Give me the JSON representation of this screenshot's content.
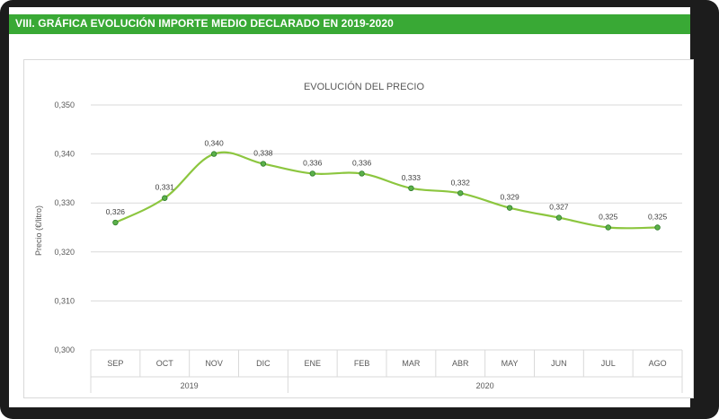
{
  "header": {
    "title": "VIII. GRÁFICA EVOLUCIÓN IMPORTE MEDIO DECLARADO EN 2019-2020"
  },
  "colors": {
    "accent": "#39a935",
    "line": "#8cc63f",
    "marker_fill": "#5bb04a",
    "marker_stroke": "#2f7d2a",
    "grid": "#d9d9d9"
  },
  "chart_data": {
    "type": "line",
    "title": "EVOLUCIÓN DEL PRECIO",
    "xlabel": "",
    "ylabel": "Precio (€/litro)",
    "categories": [
      "SEP",
      "OCT",
      "NOV",
      "DIC",
      "ENE",
      "FEB",
      "MAR",
      "ABR",
      "MAY",
      "JUN",
      "JUL",
      "AGO"
    ],
    "year_groups": [
      {
        "label": "2019",
        "start": 0,
        "end": 3
      },
      {
        "label": "2020",
        "start": 4,
        "end": 11
      }
    ],
    "values": [
      0.326,
      0.331,
      0.34,
      0.338,
      0.336,
      0.336,
      0.333,
      0.332,
      0.329,
      0.327,
      0.325,
      0.325
    ],
    "value_labels": [
      "0,326",
      "0,331",
      "0,340",
      "0,338",
      "0,336",
      "0,336",
      "0,333",
      "0,332",
      "0,329",
      "0,327",
      "0,325",
      "0,325"
    ],
    "ylim": [
      0.3,
      0.35
    ],
    "yticks": [
      0.3,
      0.31,
      0.32,
      0.33,
      0.34,
      0.35
    ],
    "ytick_labels": [
      "0,300",
      "0,310",
      "0,320",
      "0,330",
      "0,340",
      "0,350"
    ],
    "grid": true,
    "legend": "none"
  }
}
